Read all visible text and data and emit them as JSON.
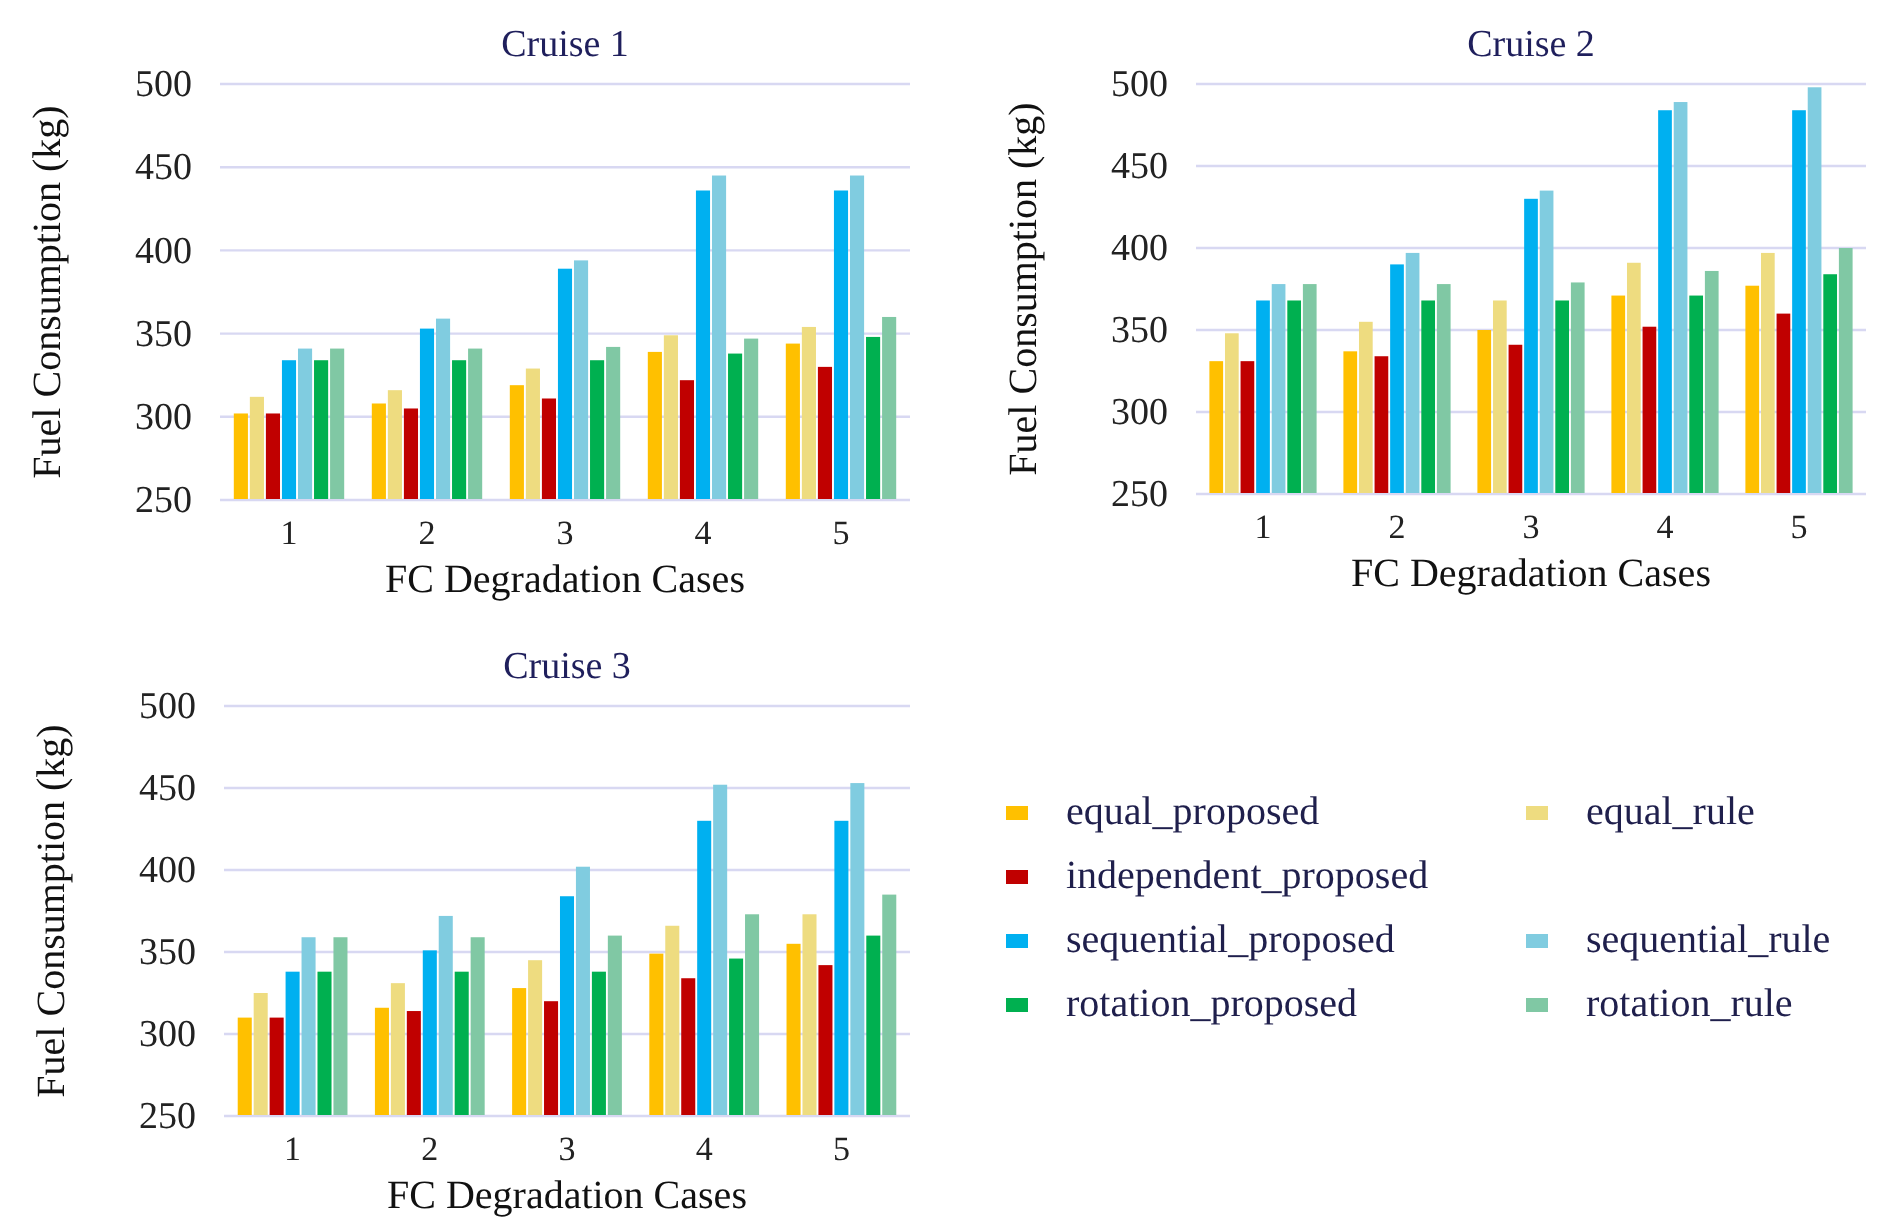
{
  "chart_data": [
    {
      "type": "bar",
      "title": "Cruise 1",
      "xlabel": "FC Degradation Cases",
      "ylabel": "Fuel Consumption (kg)",
      "categories": [
        "1",
        "2",
        "3",
        "4",
        "5"
      ],
      "ylim": [
        250,
        500
      ],
      "yticks": [
        250,
        300,
        350,
        400,
        450,
        500
      ],
      "grid": "y",
      "legend": false,
      "series": [
        {
          "color": "#ffc000",
          "values": [
            302,
            308,
            319,
            339,
            344
          ]
        },
        {
          "color": "#eedc80",
          "values": [
            312,
            316,
            329,
            349,
            354
          ]
        },
        {
          "color": "#c00000",
          "values": [
            302,
            305,
            311,
            322,
            330
          ]
        },
        {
          "color": "#00b0f0",
          "values": [
            334,
            353,
            389,
            436,
            436
          ]
        },
        {
          "color": "#80cce0",
          "values": [
            341,
            359,
            394,
            445,
            445
          ]
        },
        {
          "color": "#00b050",
          "values": [
            334,
            334,
            334,
            338,
            348
          ]
        },
        {
          "color": "#80c8a4",
          "values": [
            341,
            341,
            342,
            347,
            360
          ]
        }
      ]
    },
    {
      "type": "bar",
      "title": "Cruise 2",
      "xlabel": "FC Degradation Cases",
      "ylabel": "Fuel Consumption (kg)",
      "categories": [
        "1",
        "2",
        "3",
        "4",
        "5"
      ],
      "ylim": [
        250,
        500
      ],
      "yticks": [
        250,
        300,
        350,
        400,
        450,
        500
      ],
      "grid": "y",
      "legend": false,
      "series": [
        {
          "color": "#ffc000",
          "values": [
            331,
            337,
            350,
            371,
            377
          ]
        },
        {
          "color": "#eedc80",
          "values": [
            348,
            355,
            368,
            391,
            397
          ]
        },
        {
          "color": "#c00000",
          "values": [
            331,
            334,
            341,
            352,
            360
          ]
        },
        {
          "color": "#00b0f0",
          "values": [
            368,
            390,
            430,
            484,
            484
          ]
        },
        {
          "color": "#80cce0",
          "values": [
            378,
            397,
            435,
            489,
            498
          ]
        },
        {
          "color": "#00b050",
          "values": [
            368,
            368,
            368,
            371,
            384
          ]
        },
        {
          "color": "#80c8a4",
          "values": [
            378,
            378,
            379,
            386,
            400
          ]
        }
      ]
    },
    {
      "type": "bar",
      "title": "Cruise 3",
      "xlabel": "FC Degradation Cases",
      "ylabel": "Fuel Consumption (kg)",
      "categories": [
        "1",
        "2",
        "3",
        "4",
        "5"
      ],
      "ylim": [
        250,
        500
      ],
      "yticks": [
        250,
        300,
        350,
        400,
        450,
        500
      ],
      "grid": "y",
      "legend": "right",
      "series": [
        {
          "name": "equal_proposed",
          "color": "#ffc000",
          "values": [
            310,
            316,
            328,
            349,
            355
          ]
        },
        {
          "name": "equal_rule",
          "color": "#eedc80",
          "values": [
            325,
            331,
            345,
            366,
            373
          ]
        },
        {
          "name": "independent_proposed",
          "color": "#c00000",
          "values": [
            310,
            314,
            320,
            334,
            342
          ]
        },
        {
          "name": "sequential_proposed",
          "color": "#00b0f0",
          "values": [
            338,
            351,
            384,
            430,
            430
          ]
        },
        {
          "name": "sequential_rule",
          "color": "#80cce0",
          "values": [
            359,
            372,
            402,
            452,
            453
          ]
        },
        {
          "name": "rotation_proposed",
          "color": "#00b050",
          "values": [
            338,
            338,
            338,
            346,
            360
          ]
        },
        {
          "name": "rotation_rule",
          "color": "#80c8a4",
          "values": [
            359,
            359,
            360,
            373,
            385
          ]
        }
      ]
    }
  ]
}
